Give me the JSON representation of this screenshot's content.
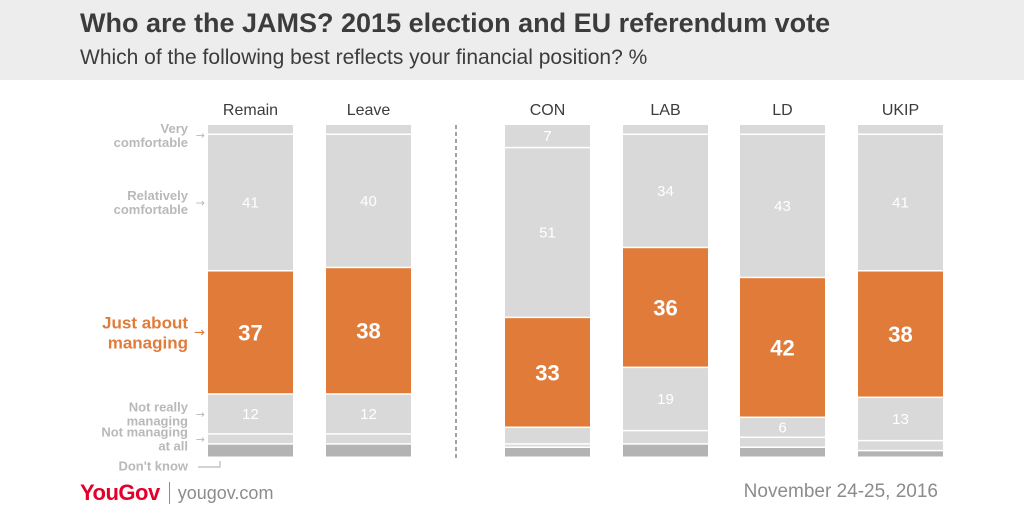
{
  "header": {
    "title": "Who are the JAMS? 2015 election and EU referendum vote",
    "subtitle": "Which of the following best reflects your financial position? %"
  },
  "footer": {
    "logo": "YouGov",
    "site": "yougov.com",
    "date": "November 24-25, 2016"
  },
  "colors": {
    "grey": "#d9d9d9",
    "highlight": "#e07b39",
    "dark_grey": "#b3b3b3",
    "label_grey": "#b9b9b9",
    "value_on_grey": "#ffffff"
  },
  "chart_data": {
    "type": "bar",
    "stacked": true,
    "percent_scale": [
      0,
      100
    ],
    "categories": [
      "Remain",
      "Leave",
      "CON",
      "LAB",
      "LD",
      "UKIP"
    ],
    "groups": [
      [
        "Remain",
        "Leave"
      ],
      [
        "CON",
        "LAB",
        "LD",
        "UKIP"
      ]
    ],
    "series": [
      {
        "name": "Very comfortable",
        "values": [
          3,
          3,
          7,
          3,
          3,
          3
        ],
        "labels": [
          "",
          "",
          "7",
          "",
          "",
          ""
        ]
      },
      {
        "name": "Relatively comfortable",
        "values": [
          41,
          40,
          51,
          34,
          43,
          41
        ],
        "labels": [
          "41",
          "40",
          "51",
          "34",
          "43",
          "41"
        ]
      },
      {
        "name": "Just about managing",
        "values": [
          37,
          38,
          33,
          36,
          42,
          38
        ],
        "labels": [
          "37",
          "38",
          "33",
          "36",
          "42",
          "38"
        ],
        "highlight": true
      },
      {
        "name": "Not really managing",
        "values": [
          12,
          12,
          5,
          19,
          6,
          13
        ],
        "labels": [
          "12",
          "12",
          "",
          "19",
          "6",
          "13"
        ]
      },
      {
        "name": "Not managing at all",
        "values": [
          3,
          3,
          1,
          4,
          3,
          3
        ],
        "labels": [
          "",
          "",
          "",
          "",
          "",
          ""
        ]
      },
      {
        "name": "Don't know",
        "values": [
          4,
          4,
          3,
          4,
          3,
          2
        ],
        "labels": [
          "",
          "",
          "",
          "",
          "",
          ""
        ]
      }
    ],
    "row_labels": [
      [
        "Very",
        "comfortable"
      ],
      [
        "Relatively",
        "comfortable"
      ],
      [
        "Just about",
        "managing"
      ],
      [
        "Not really",
        "managing"
      ],
      [
        "Not managing",
        "at all"
      ],
      [
        "Don't know"
      ]
    ]
  }
}
